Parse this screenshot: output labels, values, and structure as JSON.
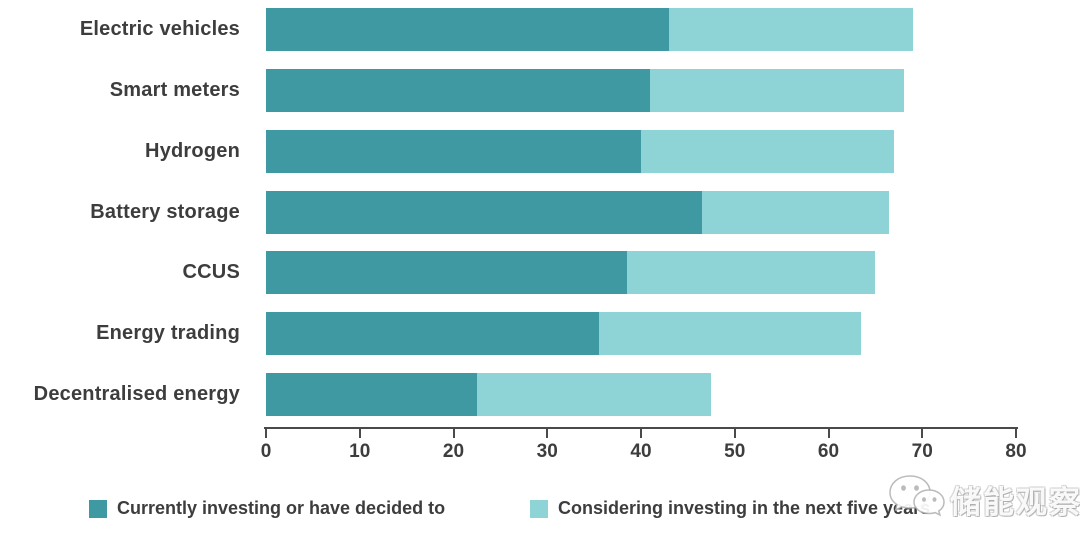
{
  "colors": {
    "series_dark": "#3e99a2",
    "series_light": "#8ed3d5",
    "axis": "#4a4a4a",
    "text": "#3d3d3d",
    "background": "#ffffff"
  },
  "chart_data": {
    "type": "bar",
    "orientation": "horizontal",
    "stacked": true,
    "categories": [
      "Electric vehicles",
      "Smart meters",
      "Hydrogen",
      "Battery storage",
      "CCUS",
      "Energy trading",
      "Decentralised energy"
    ],
    "series": [
      {
        "name": "Currently investing or have decided to",
        "color": "#3e99a2",
        "values": [
          43,
          41,
          40,
          46.5,
          38.5,
          35.5,
          22.5
        ]
      },
      {
        "name": "Considering investing in the next five years",
        "color": "#8ed3d5",
        "values": [
          26,
          27,
          27,
          20,
          26.5,
          28,
          25
        ]
      }
    ],
    "totals": [
      69,
      68,
      67,
      66.5,
      65,
      63.5,
      47.5
    ],
    "xlim": [
      0,
      80
    ],
    "xticks": [
      0,
      10,
      20,
      30,
      40,
      50,
      60,
      70,
      80
    ],
    "grid": false,
    "legend_position": "bottom",
    "title": "",
    "xlabel": "",
    "ylabel": ""
  },
  "watermark": {
    "text": "储能观察",
    "icon": "wechat-icon"
  }
}
